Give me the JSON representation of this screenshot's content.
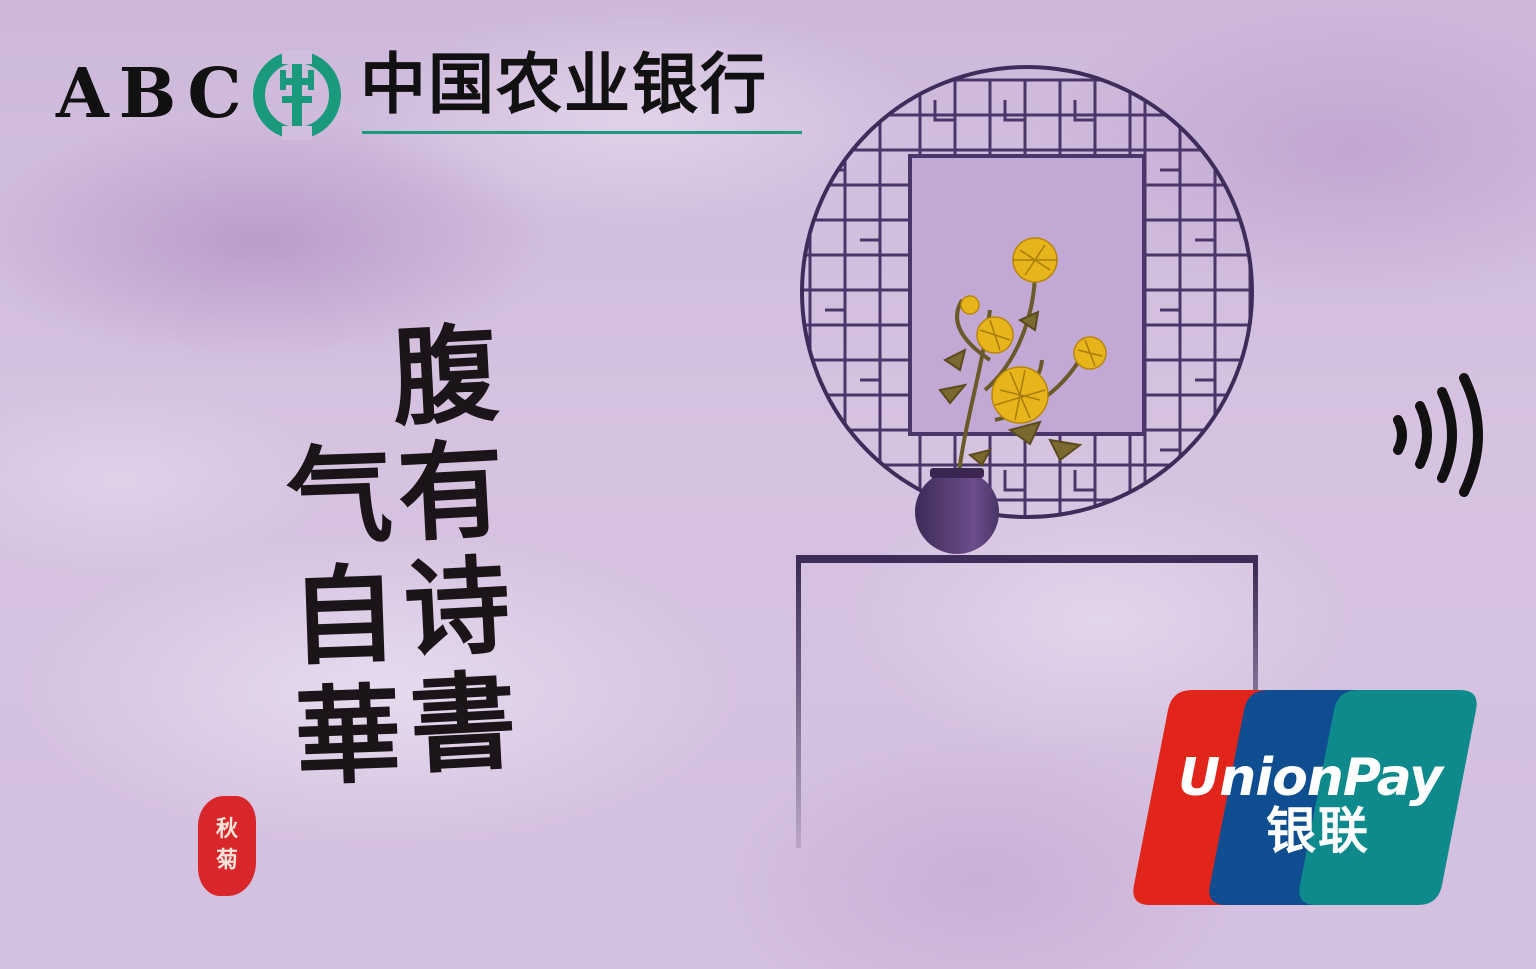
{
  "bank": {
    "abbr": "ABC",
    "name": "中国农业银行",
    "brand_color": "#1a9a7c"
  },
  "artwork": {
    "calligraphy_line_1": "腹有诗書",
    "calligraphy_line_2": "气自華",
    "seal_text_1": "秋",
    "seal_text_2": "菊",
    "seal_color": "#d8262b",
    "window_color": "#4a3668",
    "flower_color": "#e8b41c"
  },
  "contactless": {
    "icon": "contactless-icon"
  },
  "network": {
    "name": "UnionPay",
    "name_cn": "银联",
    "colors": [
      "#e1251b",
      "#0e4d8f",
      "#0f8a8c"
    ]
  }
}
